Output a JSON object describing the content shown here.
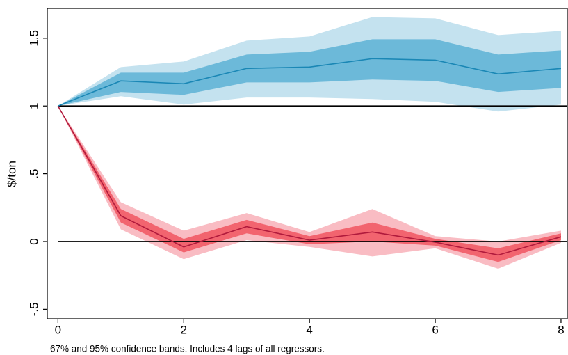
{
  "chart_data": {
    "type": "line",
    "ylabel": "$/ton",
    "note": "67% and 95% confidence bands. Includes 4 lags of all regressors.",
    "x": [
      0,
      1,
      2,
      3,
      4,
      5,
      6,
      7,
      8
    ],
    "xlim": [
      -0.17,
      8.1
    ],
    "xticks": [
      0,
      2,
      4,
      6,
      8
    ],
    "ylim": [
      -0.57,
      1.72
    ],
    "yticks": [
      {
        "value": -0.5,
        "label": "-.5"
      },
      0,
      {
        "value": 0.5,
        "label": ".5"
      },
      1,
      1.5
    ],
    "hlines": [
      1,
      0
    ],
    "series": [
      {
        "color": "#1a87b5",
        "band_colors": [
          "#c4e2ef",
          "#6cb9d9"
        ],
        "values": [
          1,
          1.185,
          1.164,
          1.277,
          1.287,
          1.349,
          1.338,
          1.236,
          1.277
        ],
        "upper_95": [
          1,
          1.287,
          1.328,
          1.482,
          1.513,
          1.656,
          1.646,
          1.523,
          1.554
        ],
        "lower_95": [
          1,
          1.072,
          1.01,
          1.062,
          1.062,
          1.051,
          1.031,
          0.959,
          1.01
        ],
        "upper_67": [
          1,
          1.246,
          1.246,
          1.379,
          1.4,
          1.492,
          1.492,
          1.379,
          1.41
        ],
        "lower_67": [
          1,
          1.103,
          1.082,
          1.174,
          1.174,
          1.195,
          1.185,
          1.103,
          1.133
        ]
      },
      {
        "color": "#b01a3c",
        "band_colors": [
          "#f9bcc3",
          "#f2646f"
        ],
        "values": [
          1,
          0.19,
          -0.04,
          0.11,
          0.01,
          0.07,
          -0.005,
          -0.1,
          0.035
        ],
        "upper_95": [
          1,
          0.29,
          0.08,
          0.21,
          0.07,
          0.24,
          0.04,
          0.0,
          0.08
        ],
        "lower_95": [
          1,
          0.09,
          -0.13,
          0.01,
          -0.04,
          -0.11,
          -0.05,
          -0.2,
          -0.01
        ],
        "upper_67": [
          1,
          0.24,
          0.02,
          0.16,
          0.04,
          0.14,
          0.02,
          -0.05,
          0.06
        ],
        "lower_67": [
          1,
          0.14,
          -0.08,
          0.06,
          -0.02,
          0.0,
          -0.03,
          -0.15,
          0.01
        ]
      }
    ]
  }
}
